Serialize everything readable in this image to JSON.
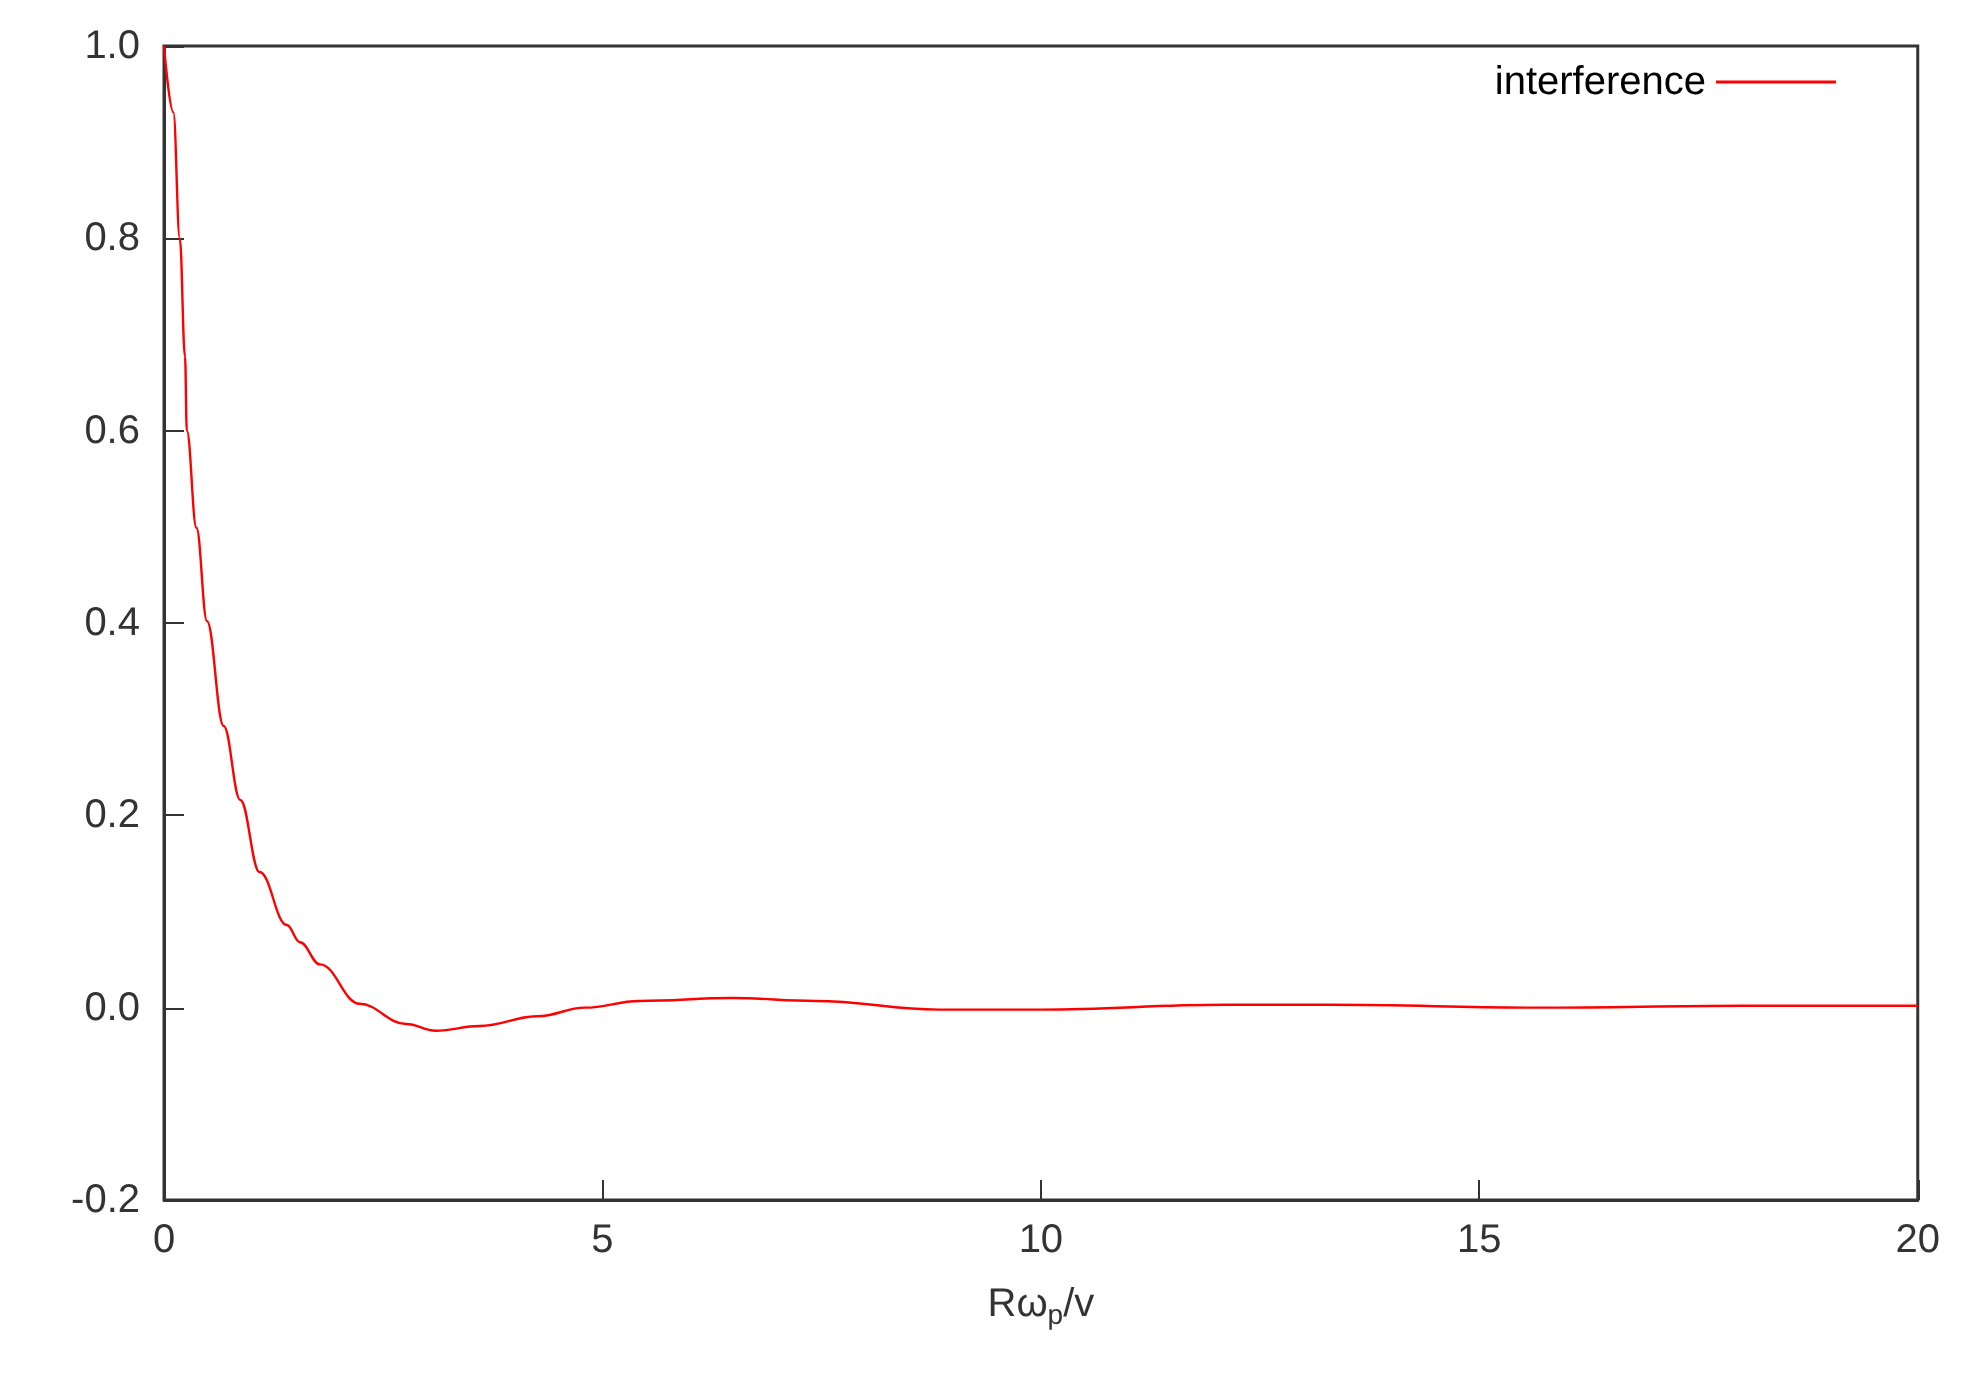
{
  "chart_data": {
    "type": "line",
    "xlabel": "Rω$_{p}$/v",
    "x": [
      0,
      0.107,
      0.18,
      0.24,
      0.26,
      0.37,
      0.49,
      0.68,
      0.87,
      1.09,
      1.4,
      1.55,
      1.78,
      2.23,
      2.76,
      3.1,
      3.6,
      4.26,
      4.8,
      5.42,
      6.49,
      7.43,
      8.84,
      10.0,
      12.1,
      13.3,
      15.7,
      18.0,
      20.0
    ],
    "series": [
      {
        "name": "interference",
        "color": "#ff0000",
        "values": [
          1.0,
          0.931,
          0.8,
          0.677,
          0.6,
          0.499,
          0.402,
          0.293,
          0.216,
          0.141,
          0.086,
          0.068,
          0.045,
          0.004,
          -0.017,
          -0.024,
          -0.019,
          -0.009,
          0.0,
          0.007,
          0.01,
          0.007,
          -0.002,
          -0.002,
          0.003,
          0.003,
          0.0,
          0.002,
          0.002
        ]
      }
    ],
    "xlim": [
      0,
      20
    ],
    "xticks": [
      0,
      5,
      10,
      15,
      20
    ],
    "ylim": [
      -0.2,
      1.0
    ],
    "yticks": [
      {
        "value": -0.2,
        "label": "-0.2"
      },
      {
        "value": 0,
        "label": "0.0"
      },
      {
        "value": 0.2,
        "label": "0.2"
      },
      {
        "value": 0.4,
        "label": "0.4"
      },
      {
        "value": 0.6,
        "label": "0.6"
      },
      {
        "value": 0.8,
        "label": "0.8"
      },
      {
        "value": 1.0,
        "label": "1.0"
      }
    ],
    "legend": "top right",
    "grid": false,
    "marker": "none",
    "line_style": "solid"
  }
}
